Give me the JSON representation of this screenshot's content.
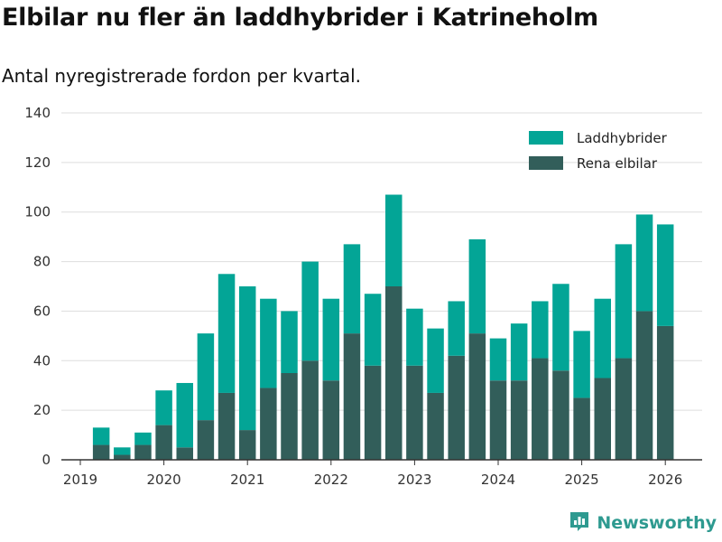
{
  "page": {
    "title": "Elbilar nu fler än laddhybrider i Katrineholm",
    "subtitle": "Antal nyregistrerade fordon per kvartal.",
    "brand": "Newsworthy"
  },
  "colors": {
    "laddhybrider": "#03a596",
    "elbilar": "#325e5a",
    "grid": "#dddddd",
    "axis": "#333333",
    "brand": "#2e9a90"
  },
  "chart_data": {
    "type": "bar",
    "stacked": true,
    "title": "Elbilar nu fler än laddhybrider i Katrineholm",
    "subtitle": "Antal nyregistrerade fordon per kvartal.",
    "xlabel": "",
    "ylabel": "",
    "ylim": [
      0,
      140
    ],
    "yticks": [
      0,
      20,
      40,
      60,
      80,
      100,
      120,
      140
    ],
    "xticks": [
      "2019",
      "2020",
      "2021",
      "2022",
      "2023",
      "2024",
      "2025",
      "2026"
    ],
    "legend_position": "top-right",
    "grid": true,
    "categories": [
      "2019 Q2",
      "2019 Q3",
      "2019 Q4",
      "2020 Q1",
      "2020 Q2",
      "2020 Q3",
      "2020 Q4",
      "2021 Q1",
      "2021 Q2",
      "2021 Q3",
      "2021 Q4",
      "2022 Q1",
      "2022 Q2",
      "2022 Q3",
      "2022 Q4",
      "2023 Q1",
      "2023 Q2",
      "2023 Q3",
      "2023 Q4",
      "2024 Q1",
      "2024 Q2",
      "2024 Q3",
      "2024 Q4",
      "2025 Q1",
      "2025 Q2",
      "2025 Q3",
      "2025 Q4",
      "2026 Q1"
    ],
    "series": [
      {
        "name": "Rena elbilar",
        "values": [
          6,
          2,
          6,
          14,
          5,
          16,
          27,
          12,
          29,
          35,
          40,
          32,
          51,
          38,
          70,
          38,
          27,
          42,
          51,
          32,
          32,
          41,
          36,
          25,
          33,
          41,
          60,
          54
        ]
      },
      {
        "name": "Laddhybrider",
        "values": [
          7,
          3,
          5,
          14,
          26,
          35,
          48,
          58,
          36,
          25,
          40,
          33,
          36,
          29,
          37,
          23,
          26,
          22,
          38,
          17,
          23,
          23,
          35,
          27,
          32,
          46,
          39,
          41
        ]
      }
    ]
  }
}
